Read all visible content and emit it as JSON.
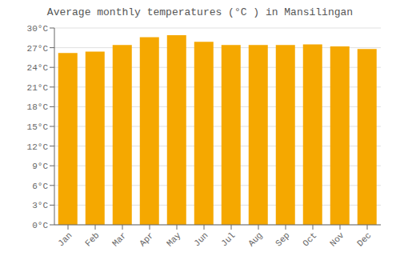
{
  "chart_data": {
    "type": "bar",
    "title": "Average monthly temperatures (°C ) in Mansilingan",
    "categories": [
      "Jan",
      "Feb",
      "Mar",
      "Apr",
      "May",
      "Jun",
      "Jul",
      "Aug",
      "Sep",
      "Oct",
      "Nov",
      "Dec"
    ],
    "values": [
      26.2,
      26.4,
      27.4,
      28.6,
      28.9,
      27.9,
      27.4,
      27.4,
      27.4,
      27.5,
      27.2,
      26.8
    ],
    "color": "#F5A800",
    "ylim": [
      0,
      30
    ],
    "yticks": [
      {
        "value": 0,
        "label": "0°C"
      },
      {
        "value": 3,
        "label": "3°C"
      },
      {
        "value": 6,
        "label": "6°C"
      },
      {
        "value": 9,
        "label": "9°C"
      },
      {
        "value": 12,
        "label": "12°C"
      },
      {
        "value": 15,
        "label": "15°C"
      },
      {
        "value": 18,
        "label": "18°C"
      },
      {
        "value": 21,
        "label": "21°C"
      },
      {
        "value": 24,
        "label": "24°C"
      },
      {
        "value": 27,
        "label": "27°C"
      },
      {
        "value": 30,
        "label": "30°C"
      }
    ],
    "grid": true
  }
}
